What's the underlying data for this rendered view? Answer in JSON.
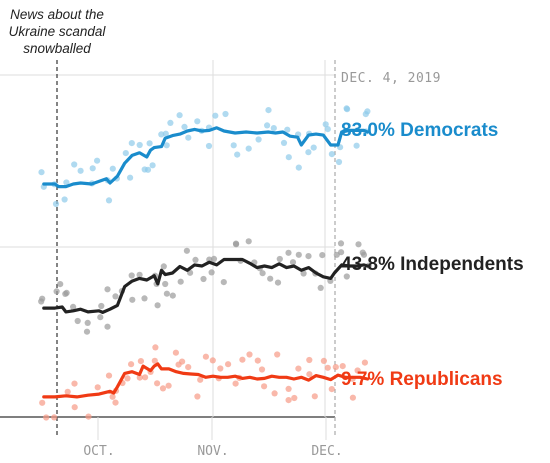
{
  "annotation": {
    "lines": [
      "News about the",
      "Ukraine scandal",
      "snowballed"
    ]
  },
  "date_label": "DEC. 4, 2019",
  "colors": {
    "democrats": "#1a8ccc",
    "independents": "#222222",
    "republicans": "#f03a14",
    "grid": "#dddddd",
    "axis": "#333333",
    "tick_text": "#999999"
  },
  "chart_data": {
    "type": "line",
    "title": "",
    "xlabel": "",
    "ylabel": "",
    "x_axis": {
      "ticks": [
        "OCT.",
        "NOV.",
        "DEC."
      ]
    },
    "grid": true,
    "event_marker": {
      "label": "News about the Ukraine scandal snowballed",
      "style": "dashed"
    },
    "series": [
      {
        "key": "democrats",
        "name": "Democrats",
        "end_label": "83.0% Democrats",
        "final_value": 83.0,
        "trend": [
          {
            "day": 0,
            "v": 73
          },
          {
            "day": 3,
            "v": 73
          },
          {
            "day": 4,
            "v": 72.5
          },
          {
            "day": 6,
            "v": 72.5
          },
          {
            "day": 8,
            "v": 73
          },
          {
            "day": 10,
            "v": 73.2
          },
          {
            "day": 13,
            "v": 73
          },
          {
            "day": 15,
            "v": 73.5
          },
          {
            "day": 17,
            "v": 74
          },
          {
            "day": 18,
            "v": 73.2
          },
          {
            "day": 20,
            "v": 74.5
          },
          {
            "day": 22,
            "v": 77
          },
          {
            "day": 24,
            "v": 78.5
          },
          {
            "day": 26,
            "v": 79
          },
          {
            "day": 28,
            "v": 78.2
          },
          {
            "day": 29,
            "v": 79.5
          },
          {
            "day": 30,
            "v": 80
          },
          {
            "day": 32,
            "v": 80.2
          },
          {
            "day": 33,
            "v": 81.8
          },
          {
            "day": 35,
            "v": 82.3
          },
          {
            "day": 37,
            "v": 82.6
          },
          {
            "day": 39,
            "v": 83.2
          },
          {
            "day": 41,
            "v": 83.5
          },
          {
            "day": 43,
            "v": 83.2
          },
          {
            "day": 45,
            "v": 83.3
          },
          {
            "day": 47,
            "v": 83.8
          },
          {
            "day": 49,
            "v": 83.2
          },
          {
            "day": 52,
            "v": 82.8
          },
          {
            "day": 55,
            "v": 83
          },
          {
            "day": 58,
            "v": 82.8
          },
          {
            "day": 61,
            "v": 83
          },
          {
            "day": 63,
            "v": 82.8
          },
          {
            "day": 65,
            "v": 83
          },
          {
            "day": 67,
            "v": 82.2
          },
          {
            "day": 69,
            "v": 82
          },
          {
            "day": 70,
            "v": 80.5
          },
          {
            "day": 72,
            "v": 82.4
          },
          {
            "day": 74,
            "v": 82.6
          },
          {
            "day": 76,
            "v": 82.4
          },
          {
            "day": 78,
            "v": 80.5
          },
          {
            "day": 80,
            "v": 80.5
          },
          {
            "day": 81,
            "v": 83
          },
          {
            "day": 83,
            "v": 83.3
          },
          {
            "day": 85,
            "v": 83.3
          },
          {
            "day": 87,
            "v": 83.3
          },
          {
            "day": 88,
            "v": 83
          }
        ]
      },
      {
        "key": "independents",
        "name": "Independents",
        "end_label": "43.8% Independents",
        "final_value": 43.8,
        "trend": [
          {
            "day": 0,
            "v": 36
          },
          {
            "day": 3,
            "v": 36
          },
          {
            "day": 5,
            "v": 36.2
          },
          {
            "day": 6,
            "v": 35.3
          },
          {
            "day": 8,
            "v": 35.5
          },
          {
            "day": 10,
            "v": 35.8
          },
          {
            "day": 12,
            "v": 35.3
          },
          {
            "day": 15,
            "v": 35.5
          },
          {
            "day": 16,
            "v": 35.2
          },
          {
            "day": 18,
            "v": 35.8
          },
          {
            "day": 20,
            "v": 36.5
          },
          {
            "day": 22,
            "v": 40
          },
          {
            "day": 24,
            "v": 41
          },
          {
            "day": 26,
            "v": 41.5
          },
          {
            "day": 28,
            "v": 41.2
          },
          {
            "day": 30,
            "v": 42
          },
          {
            "day": 31,
            "v": 40.5
          },
          {
            "day": 32,
            "v": 43
          },
          {
            "day": 33,
            "v": 42.2
          },
          {
            "day": 35,
            "v": 42.5
          },
          {
            "day": 37,
            "v": 43.7
          },
          {
            "day": 39,
            "v": 43
          },
          {
            "day": 41,
            "v": 44
          },
          {
            "day": 43,
            "v": 43.8
          },
          {
            "day": 45,
            "v": 44.5
          },
          {
            "day": 47,
            "v": 44
          },
          {
            "day": 49,
            "v": 45
          },
          {
            "day": 52,
            "v": 45
          },
          {
            "day": 54,
            "v": 45
          },
          {
            "day": 56,
            "v": 44.3
          },
          {
            "day": 58,
            "v": 43.5
          },
          {
            "day": 60,
            "v": 43.8
          },
          {
            "day": 62,
            "v": 43.5
          },
          {
            "day": 64,
            "v": 44.2
          },
          {
            "day": 66,
            "v": 43.5
          },
          {
            "day": 68,
            "v": 43.8
          },
          {
            "day": 70,
            "v": 43
          },
          {
            "day": 72,
            "v": 43.5
          },
          {
            "day": 74,
            "v": 42.5
          },
          {
            "day": 76,
            "v": 41.8
          },
          {
            "day": 78,
            "v": 41.5
          },
          {
            "day": 79,
            "v": 42.5
          },
          {
            "day": 81,
            "v": 44
          },
          {
            "day": 83,
            "v": 43.8
          },
          {
            "day": 85,
            "v": 43.8
          },
          {
            "day": 87,
            "v": 44
          },
          {
            "day": 88,
            "v": 43.8
          }
        ]
      },
      {
        "key": "republicans",
        "name": "Republicans",
        "end_label": "9.7% Republicans",
        "final_value": 9.7,
        "trend": [
          {
            "day": 0,
            "v": 6.5
          },
          {
            "day": 3,
            "v": 6.5
          },
          {
            "day": 6,
            "v": 6.7
          },
          {
            "day": 9,
            "v": 6.5
          },
          {
            "day": 12,
            "v": 6.8
          },
          {
            "day": 15,
            "v": 7
          },
          {
            "day": 18,
            "v": 7.5
          },
          {
            "day": 19,
            "v": 7.2
          },
          {
            "day": 20,
            "v": 8.3
          },
          {
            "day": 22,
            "v": 10.7
          },
          {
            "day": 24,
            "v": 11
          },
          {
            "day": 26,
            "v": 10.5
          },
          {
            "day": 27,
            "v": 12
          },
          {
            "day": 29,
            "v": 11.2
          },
          {
            "day": 30,
            "v": 12
          },
          {
            "day": 31,
            "v": 12.4
          },
          {
            "day": 32,
            "v": 11.5
          },
          {
            "day": 34,
            "v": 11.5
          },
          {
            "day": 36,
            "v": 11
          },
          {
            "day": 38,
            "v": 10.7
          },
          {
            "day": 40,
            "v": 10.6
          },
          {
            "day": 42,
            "v": 10.5
          },
          {
            "day": 44,
            "v": 10
          },
          {
            "day": 46,
            "v": 10.2
          },
          {
            "day": 48,
            "v": 10
          },
          {
            "day": 50,
            "v": 10
          },
          {
            "day": 52,
            "v": 10.2
          },
          {
            "day": 54,
            "v": 9.8
          },
          {
            "day": 56,
            "v": 10
          },
          {
            "day": 58,
            "v": 9.7
          },
          {
            "day": 60,
            "v": 9.8
          },
          {
            "day": 62,
            "v": 10.2
          },
          {
            "day": 64,
            "v": 10
          },
          {
            "day": 66,
            "v": 10
          },
          {
            "day": 68,
            "v": 9.7
          },
          {
            "day": 70,
            "v": 10
          },
          {
            "day": 72,
            "v": 9.5
          },
          {
            "day": 74,
            "v": 10.3
          },
          {
            "day": 76,
            "v": 10
          },
          {
            "day": 78,
            "v": 9.6
          },
          {
            "day": 80,
            "v": 10.4
          },
          {
            "day": 82,
            "v": 10
          },
          {
            "day": 84,
            "v": 10
          },
          {
            "day": 86,
            "v": 10
          },
          {
            "day": 88,
            "v": 9.7
          }
        ]
      }
    ]
  }
}
